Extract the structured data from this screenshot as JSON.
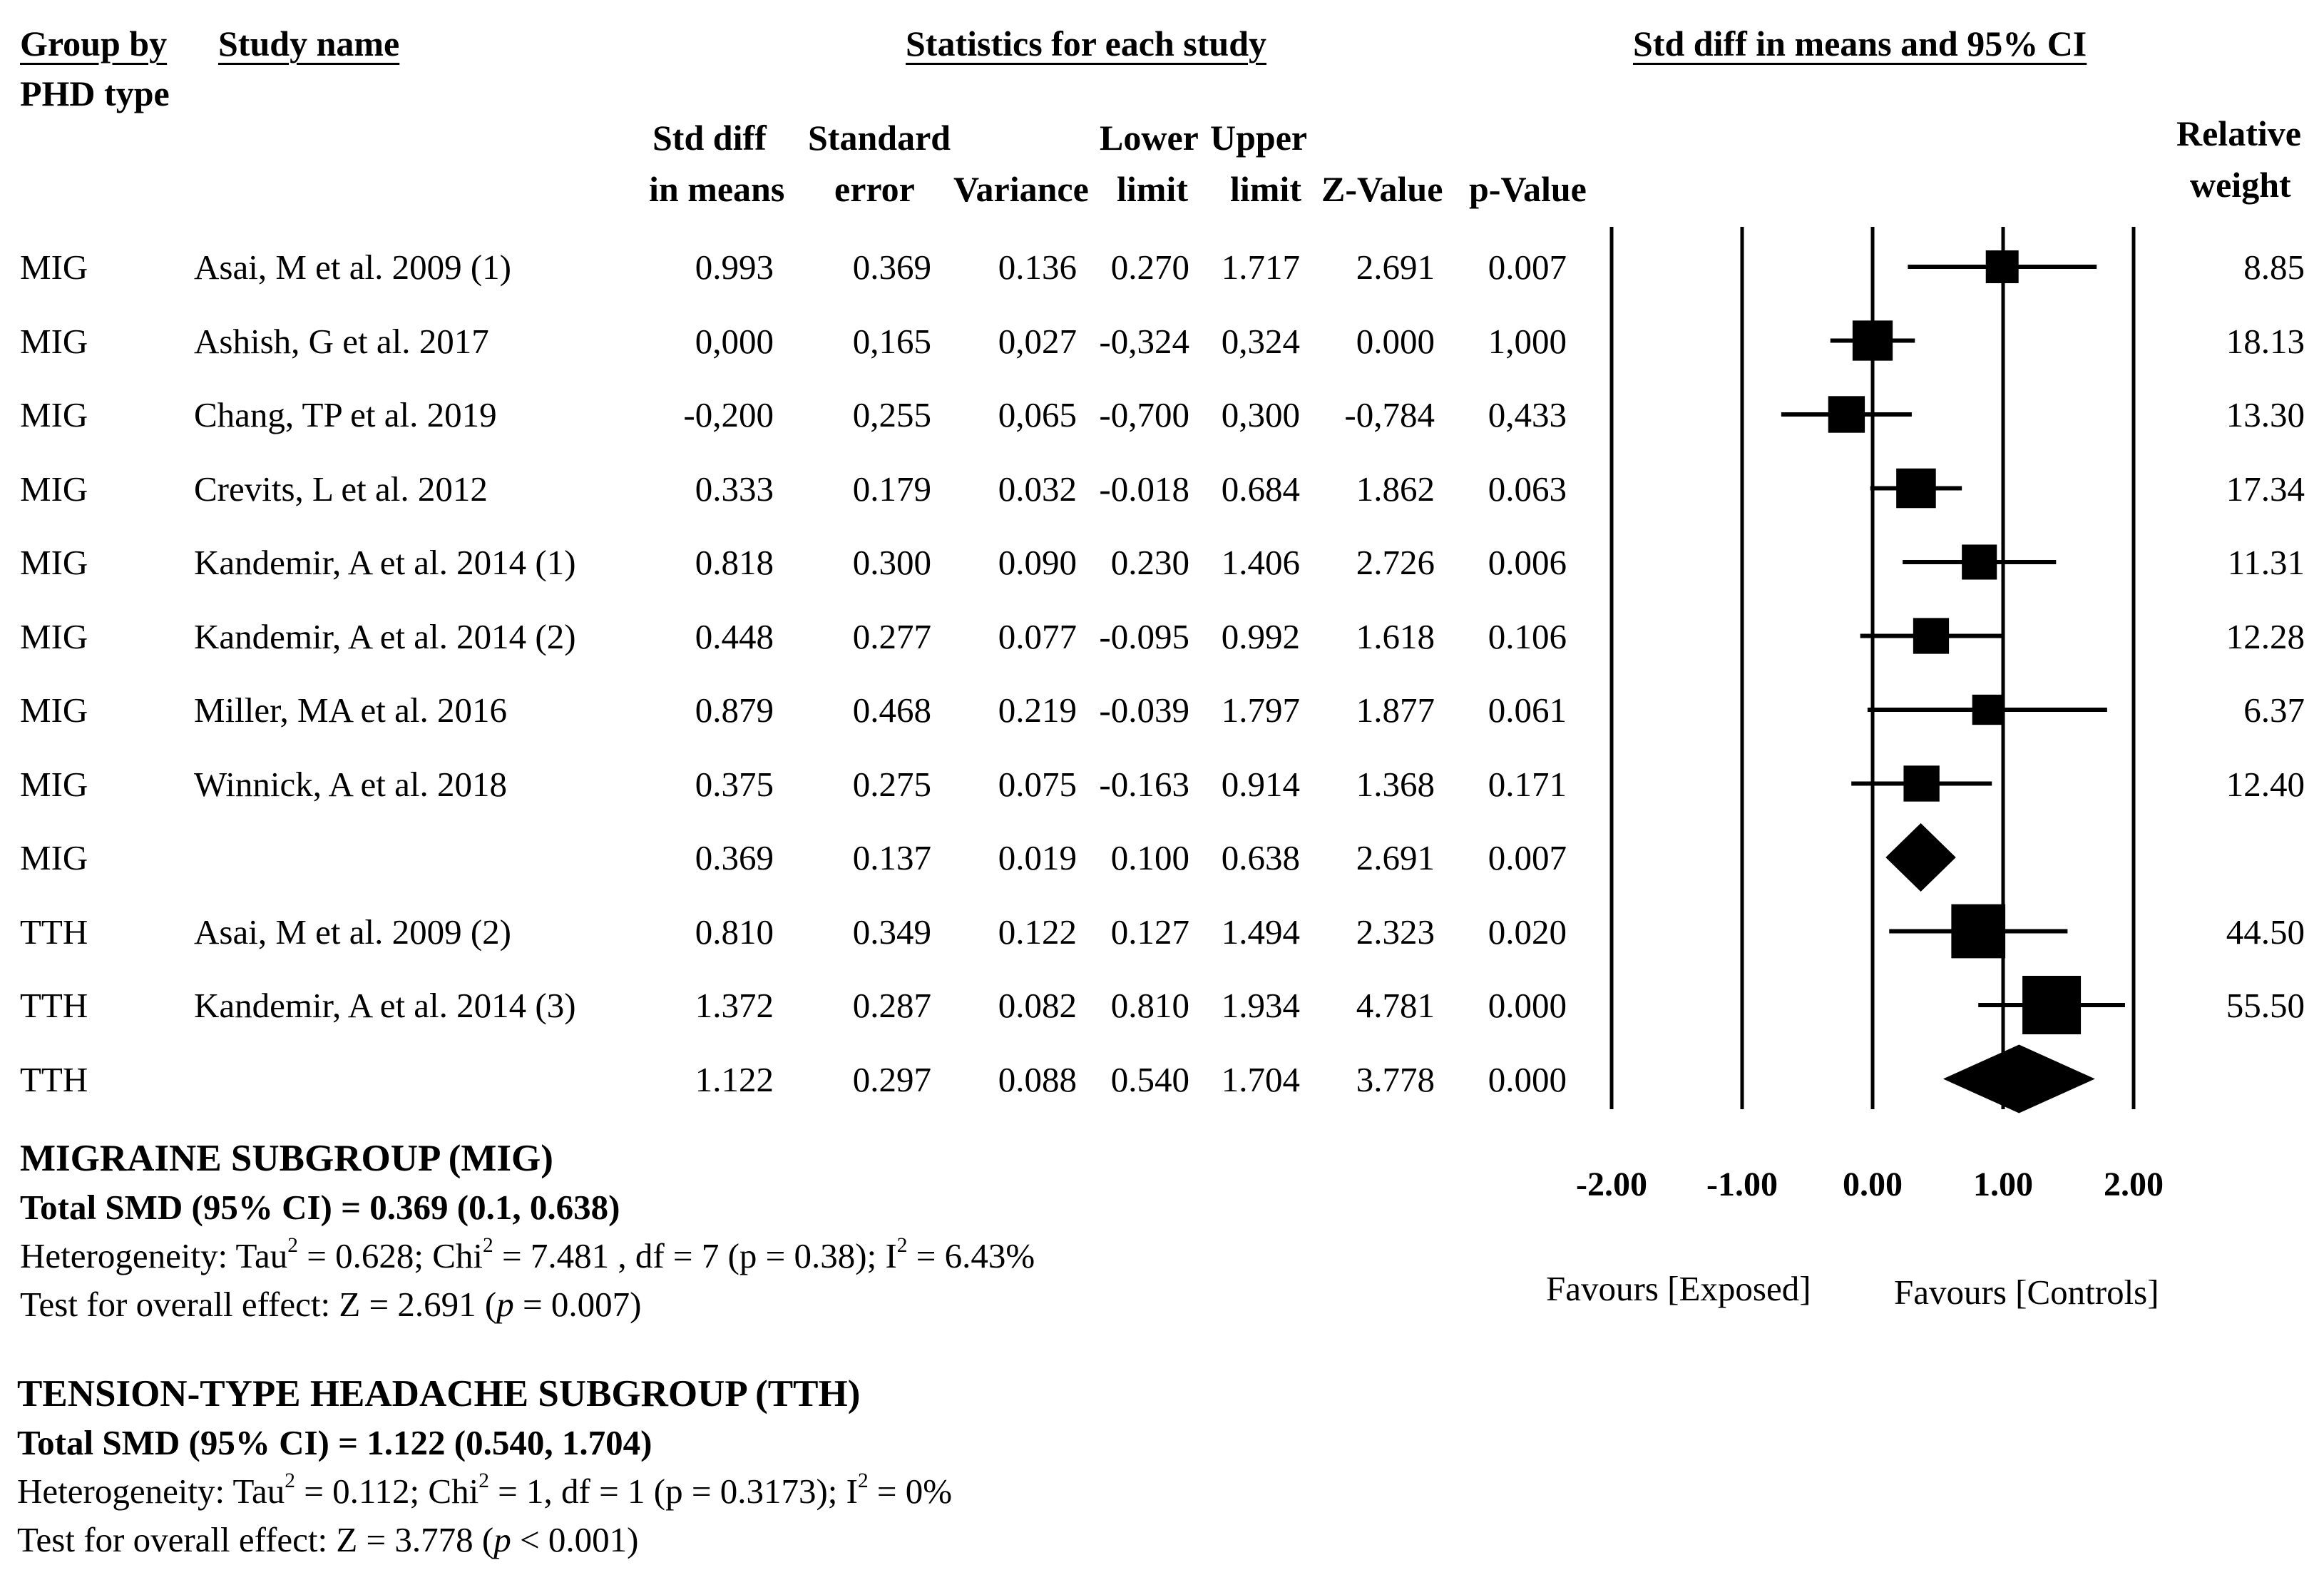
{
  "headers": {
    "group_by": "Group by",
    "phd_type": "PHD type",
    "study_name": "Study name",
    "stats_title": "Statistics for each study",
    "ci_title": "Std diff in means and 95% CI",
    "std_diff_l1": "Std diff",
    "std_diff_l2": "in means",
    "std_err_l1": "Standard",
    "std_err_l2": "error",
    "variance": "Variance",
    "lower_l1": "Lower",
    "lower_l2": "limit",
    "upper_l1": "Upper",
    "upper_l2": "limit",
    "zvalue": "Z-Value",
    "pvalue": "p-Value",
    "weight_l1": "Relative",
    "weight_l2": "weight"
  },
  "rows": [
    {
      "group": "MIG",
      "study": "Asai, M et al. 2009 (1)",
      "smd": "0.993",
      "se": "0.369",
      "var": "0.136",
      "lower": "0.270",
      "upper": "1.717",
      "z": "2.691",
      "p": "0.007",
      "weight": "8.85"
    },
    {
      "group": "MIG",
      "study": "Ashish, G et al. 2017",
      "smd": "0,000",
      "se": "0,165",
      "var": "0,027",
      "lower": "-0,324",
      "upper": "0,324",
      "z": "0.000",
      "p": "1,000",
      "weight": "18.13"
    },
    {
      "group": "MIG",
      "study": "Chang, TP et al. 2019",
      "smd": "-0,200",
      "se": "0,255",
      "var": "0,065",
      "lower": "-0,700",
      "upper": "0,300",
      "z": "-0,784",
      "p": "0,433",
      "weight": "13.30"
    },
    {
      "group": "MIG",
      "study": "Crevits, L et al. 2012",
      "smd": "0.333",
      "se": "0.179",
      "var": "0.032",
      "lower": "-0.018",
      "upper": "0.684",
      "z": "1.862",
      "p": "0.063",
      "weight": "17.34"
    },
    {
      "group": "MIG",
      "study": "Kandemir, A et al. 2014 (1)",
      "smd": "0.818",
      "se": "0.300",
      "var": "0.090",
      "lower": "0.230",
      "upper": "1.406",
      "z": "2.726",
      "p": "0.006",
      "weight": "11.31"
    },
    {
      "group": "MIG",
      "study": "Kandemir, A et al. 2014 (2)",
      "smd": "0.448",
      "se": "0.277",
      "var": "0.077",
      "lower": "-0.095",
      "upper": "0.992",
      "z": "1.618",
      "p": "0.106",
      "weight": "12.28"
    },
    {
      "group": "MIG",
      "study": "Miller, MA et al. 2016",
      "smd": "0.879",
      "se": "0.468",
      "var": "0.219",
      "lower": "-0.039",
      "upper": "1.797",
      "z": "1.877",
      "p": "0.061",
      "weight": "6.37"
    },
    {
      "group": "MIG",
      "study": "Winnick, A et al. 2018",
      "smd": "0.375",
      "se": "0.275",
      "var": "0.075",
      "lower": "-0.163",
      "upper": "0.914",
      "z": "1.368",
      "p": "0.171",
      "weight": "12.40"
    },
    {
      "group": "MIG",
      "study": "",
      "smd": "0.369",
      "se": "0.137",
      "var": "0.019",
      "lower": "0.100",
      "upper": "0.638",
      "z": "2.691",
      "p": "0.007",
      "weight": ""
    },
    {
      "group": "TTH",
      "study": "Asai, M et al. 2009 (2)",
      "smd": "0.810",
      "se": "0.349",
      "var": "0.122",
      "lower": "0.127",
      "upper": "1.494",
      "z": "2.323",
      "p": "0.020",
      "weight": "44.50"
    },
    {
      "group": "TTH",
      "study": "Kandemir, A et al. 2014 (3)",
      "smd": "1.372",
      "se": "0.287",
      "var": "0.082",
      "lower": "0.810",
      "upper": "1.934",
      "z": "4.781",
      "p": "0.000",
      "weight": "55.50"
    },
    {
      "group": "TTH",
      "study": "",
      "smd": "1.122",
      "se": "0.297",
      "var": "0.088",
      "lower": "0.540",
      "upper": "1.704",
      "z": "3.778",
      "p": "0.000",
      "weight": ""
    }
  ],
  "axis": {
    "ticks": [
      "-2.00",
      "-1.00",
      "0.00",
      "1.00",
      "2.00"
    ],
    "favours_left": "Favours [Exposed]",
    "favours_right": "Favours [Controls]"
  },
  "summary": {
    "mig_title": "MIGRAINE SUBGROUP (MIG)",
    "mig_total": "Total SMD (95% CI) = 0.369 (0.1, 0.638)",
    "mig_het_a": "Heterogeneity: Tau",
    "mig_het_b": " = 0.628; Chi",
    "mig_het_c": " = 7.481 , df = 7 (p = 0.38); I",
    "mig_het_d": " = 6.43%",
    "mig_test_a": "Test for overall effect: Z = 2.691 (",
    "mig_test_p": "p",
    "mig_test_b": " = 0.007)",
    "tth_title": "TENSION-TYPE HEADACHE SUBGROUP (TTH)",
    "tth_total": "Total SMD (95% CI) = 1.122 (0.540, 1.704)",
    "tth_het_a": "Heterogeneity: Tau",
    "tth_het_b": " = 0.112; Chi",
    "tth_het_c": " = 1, df = 1 (p = 0.3173); I",
    "tth_het_d": " = 0%",
    "tth_test_a": "Test for overall effect: Z = 3.778  (",
    "tth_test_p": "p",
    "tth_test_b": " < 0.001)",
    "sup2": "2"
  },
  "chart_data": {
    "type": "forest",
    "x_label": "Std diff in means and 95% CI",
    "xlim": [
      -2,
      2
    ],
    "ticks": [
      -2,
      -1,
      0,
      1,
      2
    ],
    "studies": [
      {
        "group": "MIG",
        "name": "Asai, M et al. 2009 (1)",
        "smd": 0.993,
        "lower": 0.27,
        "upper": 1.717,
        "weight": 8.85
      },
      {
        "group": "MIG",
        "name": "Ashish, G et al. 2017",
        "smd": 0.0,
        "lower": -0.324,
        "upper": 0.324,
        "weight": 18.13
      },
      {
        "group": "MIG",
        "name": "Chang, TP et al. 2019",
        "smd": -0.2,
        "lower": -0.7,
        "upper": 0.3,
        "weight": 13.3
      },
      {
        "group": "MIG",
        "name": "Crevits, L et al. 2012",
        "smd": 0.333,
        "lower": -0.018,
        "upper": 0.684,
        "weight": 17.34
      },
      {
        "group": "MIG",
        "name": "Kandemir, A et al. 2014 (1)",
        "smd": 0.818,
        "lower": 0.23,
        "upper": 1.406,
        "weight": 11.31
      },
      {
        "group": "MIG",
        "name": "Kandemir, A et al. 2014 (2)",
        "smd": 0.448,
        "lower": -0.095,
        "upper": 0.992,
        "weight": 12.28
      },
      {
        "group": "MIG",
        "name": "Miller, MA et al. 2016",
        "smd": 0.879,
        "lower": -0.039,
        "upper": 1.797,
        "weight": 6.37
      },
      {
        "group": "MIG",
        "name": "Winnick, A et al. 2018",
        "smd": 0.375,
        "lower": -0.163,
        "upper": 0.914,
        "weight": 12.4
      },
      {
        "group": "MIG",
        "name": "",
        "summary": true,
        "smd": 0.369,
        "lower": 0.1,
        "upper": 0.638
      },
      {
        "group": "TTH",
        "name": "Asai, M et al. 2009 (2)",
        "smd": 0.81,
        "lower": 0.127,
        "upper": 1.494,
        "weight": 44.5
      },
      {
        "group": "TTH",
        "name": "Kandemir, A et al. 2014 (3)",
        "smd": 1.372,
        "lower": 0.81,
        "upper": 1.934,
        "weight": 55.5
      },
      {
        "group": "TTH",
        "name": "",
        "summary": true,
        "smd": 1.122,
        "lower": 0.54,
        "upper": 1.704
      }
    ]
  }
}
